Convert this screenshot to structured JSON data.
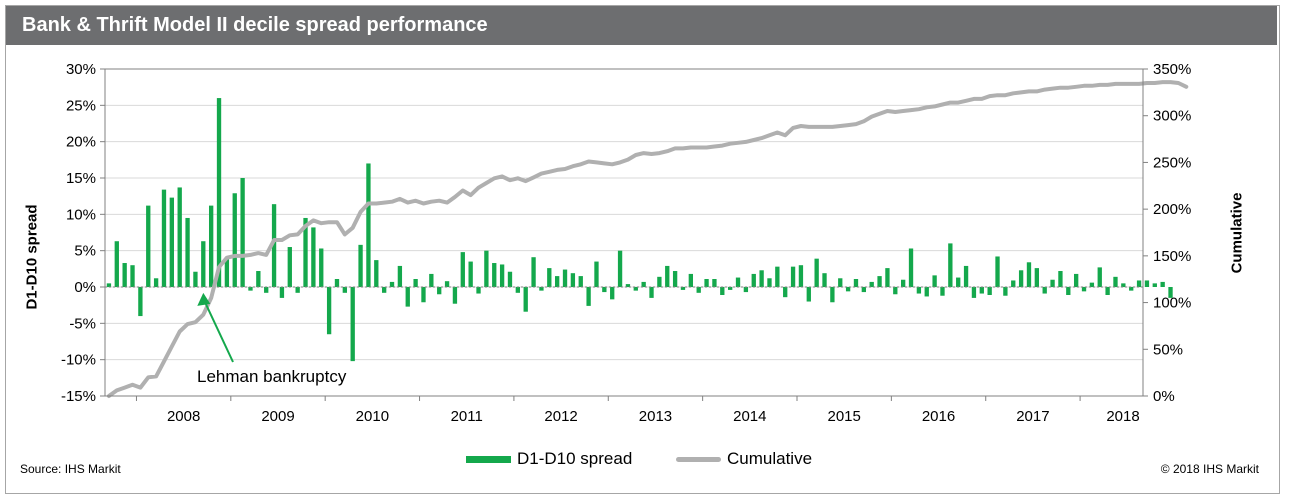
{
  "header": {
    "title": "Bank & Thrift Model II decile spread performance"
  },
  "footer": {
    "source": "Source: IHS Markit",
    "copyright": "© 2018 IHS Markit"
  },
  "colors": {
    "bar": "#14a84c",
    "line": "#b0b0b0",
    "title_bg": "#6d6e70",
    "grid": "#d9d9d9"
  },
  "chart_data": {
    "type": "bar+line",
    "xlabel": "",
    "ylabel": "D1-D10 spread",
    "y2label": "Cumulative",
    "ylim": [
      -15,
      30
    ],
    "y2lim": [
      0,
      350
    ],
    "y_ticks": [
      "-15%",
      "-10%",
      "-5%",
      "0%",
      "5%",
      "10%",
      "15%",
      "20%",
      "25%",
      "30%"
    ],
    "y2_ticks": [
      "0%",
      "50%",
      "100%",
      "150%",
      "200%",
      "250%",
      "300%",
      "350%"
    ],
    "x_ticks": [
      "2008",
      "2009",
      "2010",
      "2011",
      "2012",
      "2013",
      "2014",
      "2015",
      "2016",
      "2017",
      "2018"
    ],
    "x_range": [
      "2007-09",
      "2018-08"
    ],
    "grid": "horizontal",
    "legend_position": "bottom",
    "annotation": {
      "text": "Lehman bankruptcy",
      "date": "2008-09"
    },
    "series": [
      {
        "name": "D1-D10 spread",
        "kind": "bar",
        "start": "2007-09",
        "frequency": "monthly",
        "values": [
          0.5,
          6.3,
          3.3,
          3.0,
          -4.0,
          11.2,
          1.2,
          13.4,
          12.3,
          13.7,
          9.5,
          2.1,
          6.3,
          11.2,
          26.0,
          3.8,
          12.9,
          15.0,
          -0.5,
          2.2,
          -0.8,
          11.4,
          -1.5,
          5.5,
          -0.8,
          9.5,
          8.2,
          5.3,
          -6.5,
          1.1,
          -0.8,
          -10.2,
          5.8,
          17.0,
          3.7,
          -0.8,
          0.7,
          2.9,
          -2.7,
          1.1,
          -2.1,
          1.8,
          -1.0,
          0.8,
          -2.3,
          4.8,
          3.5,
          -0.9,
          5.0,
          3.3,
          3.1,
          2.1,
          -0.8,
          -3.4,
          4.1,
          -0.5,
          2.6,
          1.5,
          2.4,
          1.9,
          1.5,
          -2.6,
          3.5,
          -0.7,
          -1.7,
          5.0,
          0.4,
          -0.5,
          0.7,
          -1.5,
          1.4,
          2.9,
          2.2,
          -0.4,
          1.8,
          -0.8,
          1.1,
          1.1,
          -1.1,
          -0.4,
          1.3,
          -0.7,
          1.8,
          2.3,
          1.2,
          2.8,
          -1.4,
          2.8,
          3.0,
          -2.0,
          3.9,
          1.9,
          -2.1,
          1.2,
          -0.6,
          1.1,
          -0.7,
          0.7,
          1.5,
          2.6,
          -1.0,
          1.0,
          5.3,
          -0.9,
          -1.3,
          1.6,
          -1.2,
          6.0,
          1.3,
          2.9,
          -1.5,
          -0.9,
          -1.1,
          4.2,
          -1.2,
          0.9,
          2.3,
          3.4,
          2.6,
          -0.9,
          1.0,
          2.2,
          -1.1,
          1.8,
          -0.6,
          0.6,
          2.7,
          -1.1,
          1.4,
          0.5,
          -0.5,
          0.9,
          0.9,
          0.5,
          0.7,
          -1.5
        ]
      },
      {
        "name": "Cumulative",
        "kind": "line",
        "axis": "right",
        "start": "2007-09",
        "frequency": "monthly",
        "values": [
          0,
          6,
          9,
          12,
          9,
          20,
          21,
          37,
          53,
          69,
          77,
          79,
          87,
          105,
          138,
          148,
          150,
          150,
          151,
          153,
          151,
          167,
          167,
          172,
          173,
          182,
          188,
          185,
          186,
          186,
          173,
          180,
          197,
          206,
          206,
          207,
          208,
          211,
          207,
          209,
          206,
          208,
          209,
          207,
          213,
          220,
          215,
          223,
          228,
          233,
          235,
          231,
          233,
          230,
          234,
          238,
          240,
          242,
          243,
          246,
          248,
          251,
          250,
          249,
          248,
          250,
          253,
          258,
          260,
          259,
          260,
          262,
          265,
          265,
          266,
          266,
          266,
          267,
          268,
          270,
          271,
          272,
          274,
          276,
          279,
          282,
          279,
          287,
          289,
          288,
          288,
          288,
          288,
          289,
          290,
          291,
          294,
          299,
          302,
          305,
          304,
          305,
          306,
          307,
          309,
          310,
          312,
          314,
          314,
          316,
          318,
          318,
          321,
          322,
          322,
          324,
          325,
          326,
          326,
          328,
          329,
          330,
          330,
          331,
          332,
          332,
          333,
          333,
          334,
          334,
          334,
          334,
          335,
          335,
          336,
          336,
          335,
          331
        ]
      }
    ]
  }
}
